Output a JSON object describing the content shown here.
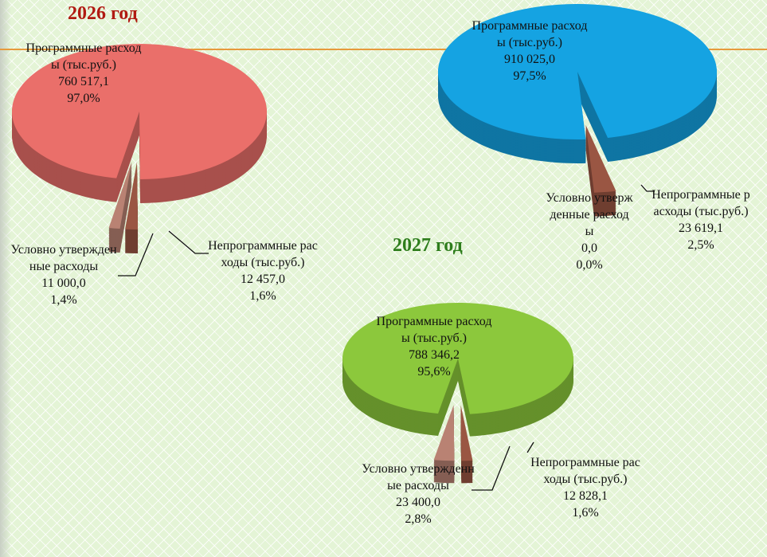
{
  "chart_data": [
    {
      "type": "pie",
      "title": "2026 год",
      "labels": [
        "Программные расходы (тыс.руб.)",
        "Условно утвержденные расходы",
        "Непрограммные расходы (тыс.руб.)"
      ],
      "values": [
        760517.1,
        11000.0,
        12457.0
      ],
      "value_labels": [
        "760 517,1",
        "11 000,0",
        "12 457,0"
      ],
      "percents": [
        97.0,
        1.4,
        1.6
      ],
      "percent_labels": [
        "97,0%",
        "1,4%",
        "1,6%"
      ],
      "colors": [
        "#ea6f6a",
        "#b98273",
        "#9a5643"
      ]
    },
    {
      "type": "pie",
      "labels": [
        "Программные расходы (тыс.руб.)",
        "Условно утвержденные расходы",
        "Непрограммные расходы (тыс.руб.)"
      ],
      "values": [
        910025.0,
        0.0,
        23619.1
      ],
      "value_labels": [
        "910 025,0",
        "0,0",
        "23 619,1"
      ],
      "percents": [
        97.5,
        0.0,
        2.5
      ],
      "percent_labels": [
        "97,5%",
        "0,0%",
        "2,5%"
      ],
      "colors": [
        "#15a3e2",
        "#b98273",
        "#9a5643"
      ]
    },
    {
      "type": "pie",
      "title": "2027 год",
      "labels": [
        "Программные расходы (тыс.руб.)",
        "Условно утвержденные расходы",
        "Непрограммные расходы (тыс.руб.)"
      ],
      "values": [
        788346.2,
        23400.0,
        12828.1
      ],
      "value_labels": [
        "788 346,2",
        "23 400,0",
        "12 828,1"
      ],
      "percents": [
        95.6,
        2.8,
        1.6
      ],
      "percent_labels": [
        "95,6%",
        "2,8%",
        "1,6%"
      ],
      "colors": [
        "#8cc83c",
        "#b98273",
        "#9a5643"
      ]
    }
  ]
}
